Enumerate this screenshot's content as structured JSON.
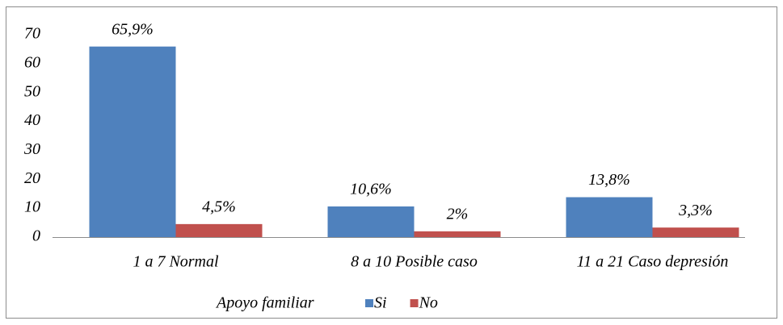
{
  "chart_data": {
    "type": "bar",
    "categories": [
      "1 a 7 Normal",
      "8 a 10 Posible caso",
      "11 a 21 Caso depresión"
    ],
    "series": [
      {
        "name": "Si",
        "color": "#4f81bd",
        "values": [
          65.9,
          10.6,
          13.8
        ],
        "value_labels": [
          "65,9%",
          "10,6%",
          "13,8%"
        ]
      },
      {
        "name": "No",
        "color": "#c0504d",
        "values": [
          4.5,
          2,
          3.3
        ],
        "value_labels": [
          "4,5%",
          "2%",
          "3,3%"
        ]
      }
    ],
    "legend_title": "Apoyo familiar",
    "legend": "bottom",
    "ylim": [
      0,
      70
    ],
    "yticks": [
      0,
      10,
      20,
      30,
      40,
      50,
      60,
      70
    ],
    "grid": false
  }
}
